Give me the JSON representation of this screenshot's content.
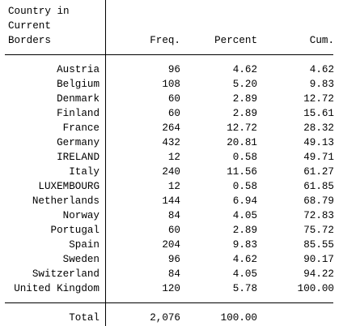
{
  "table": {
    "variable_label_lines": [
      "Country in",
      "Current",
      "Borders"
    ],
    "columns": {
      "freq": "Freq.",
      "percent": "Percent",
      "cum": "Cum."
    },
    "rows": [
      {
        "label": "Austria",
        "freq": "96",
        "percent": "4.62",
        "cum": "4.62"
      },
      {
        "label": "Belgium",
        "freq": "108",
        "percent": "5.20",
        "cum": "9.83"
      },
      {
        "label": "Denmark",
        "freq": "60",
        "percent": "2.89",
        "cum": "12.72"
      },
      {
        "label": "Finland",
        "freq": "60",
        "percent": "2.89",
        "cum": "15.61"
      },
      {
        "label": "France",
        "freq": "264",
        "percent": "12.72",
        "cum": "28.32"
      },
      {
        "label": "Germany",
        "freq": "432",
        "percent": "20.81",
        "cum": "49.13"
      },
      {
        "label": "IRELAND",
        "freq": "12",
        "percent": "0.58",
        "cum": "49.71"
      },
      {
        "label": "Italy",
        "freq": "240",
        "percent": "11.56",
        "cum": "61.27"
      },
      {
        "label": "LUXEMBOURG",
        "freq": "12",
        "percent": "0.58",
        "cum": "61.85"
      },
      {
        "label": "Netherlands",
        "freq": "144",
        "percent": "6.94",
        "cum": "68.79"
      },
      {
        "label": "Norway",
        "freq": "84",
        "percent": "4.05",
        "cum": "72.83"
      },
      {
        "label": "Portugal",
        "freq": "60",
        "percent": "2.89",
        "cum": "75.72"
      },
      {
        "label": "Spain",
        "freq": "204",
        "percent": "9.83",
        "cum": "85.55"
      },
      {
        "label": "Sweden",
        "freq": "96",
        "percent": "4.62",
        "cum": "90.17"
      },
      {
        "label": "Switzerland",
        "freq": "84",
        "percent": "4.05",
        "cum": "94.22"
      },
      {
        "label": "United Kingdom",
        "freq": "120",
        "percent": "5.78",
        "cum": "100.00"
      }
    ],
    "total": {
      "label": "Total",
      "freq": "2,076",
      "percent": "100.00"
    }
  }
}
